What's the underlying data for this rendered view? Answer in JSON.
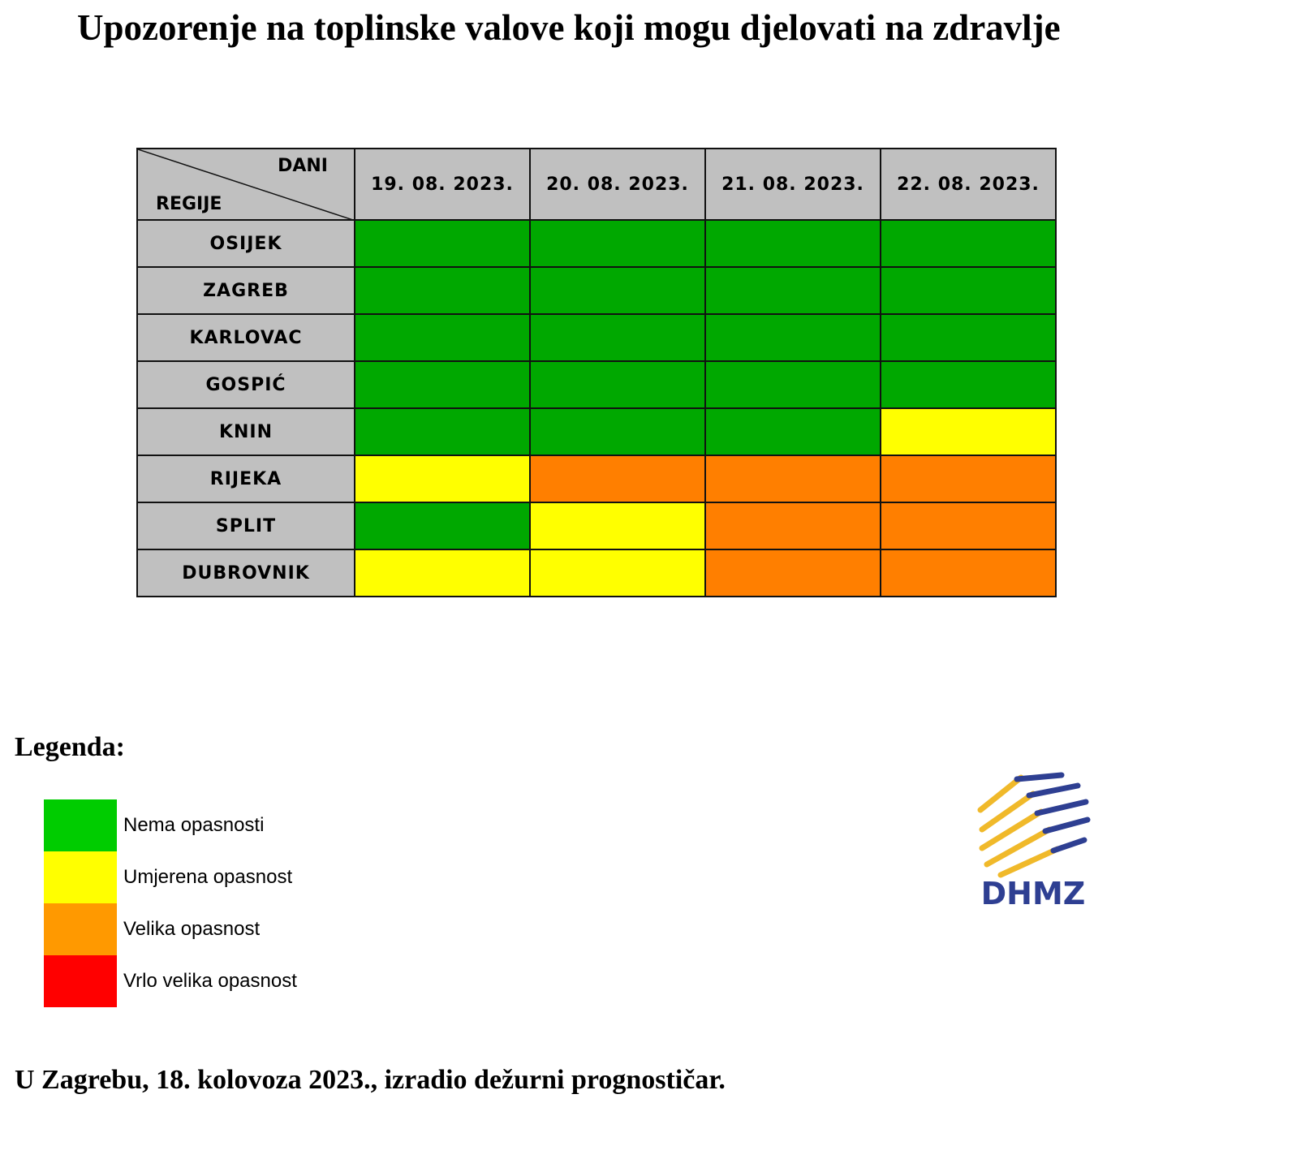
{
  "title": "Upozorenje na toplinske valove koji mogu djelovati na zdravlje",
  "table": {
    "corner_days": "DANI",
    "corner_regions": "REGIJE",
    "dates": [
      "19. 08. 2023.",
      "20. 08. 2023.",
      "21. 08. 2023.",
      "22. 08. 2023."
    ],
    "rows": [
      {
        "region": "OSIJEK",
        "levels": [
          "none",
          "none",
          "none",
          "none"
        ]
      },
      {
        "region": "ZAGREB",
        "levels": [
          "none",
          "none",
          "none",
          "none"
        ]
      },
      {
        "region": "KARLOVAC",
        "levels": [
          "none",
          "none",
          "none",
          "none"
        ]
      },
      {
        "region": "GOSPIĆ",
        "levels": [
          "none",
          "none",
          "none",
          "none"
        ]
      },
      {
        "region": "KNIN",
        "levels": [
          "none",
          "none",
          "none",
          "moderate"
        ]
      },
      {
        "region": "RIJEKA",
        "levels": [
          "moderate",
          "high",
          "high",
          "high"
        ]
      },
      {
        "region": "SPLIT",
        "levels": [
          "none",
          "moderate",
          "high",
          "high"
        ]
      },
      {
        "region": "DUBROVNIK",
        "levels": [
          "moderate",
          "moderate",
          "high",
          "high"
        ]
      }
    ],
    "colors": {
      "none": "#00a800",
      "moderate": "#ffff00",
      "high": "#ff7f00",
      "very_high": "#ff0000"
    }
  },
  "legend": {
    "title": "Legenda:",
    "items": [
      {
        "label": "Nema opasnosti",
        "color": "#00cc00"
      },
      {
        "label": "Umjerena opasnost",
        "color": "#ffff00"
      },
      {
        "label": "Velika opasnost",
        "color": "#ff9900"
      },
      {
        "label": "Vrlo velika opasnost",
        "color": "#ff0000"
      }
    ]
  },
  "logo": {
    "text": "DHMZ",
    "blue": "#2e3f92",
    "gold": "#f0b92a"
  },
  "footer": "U Zagrebu, 18. kolovoza 2023., izradio dežurni prognostičar."
}
